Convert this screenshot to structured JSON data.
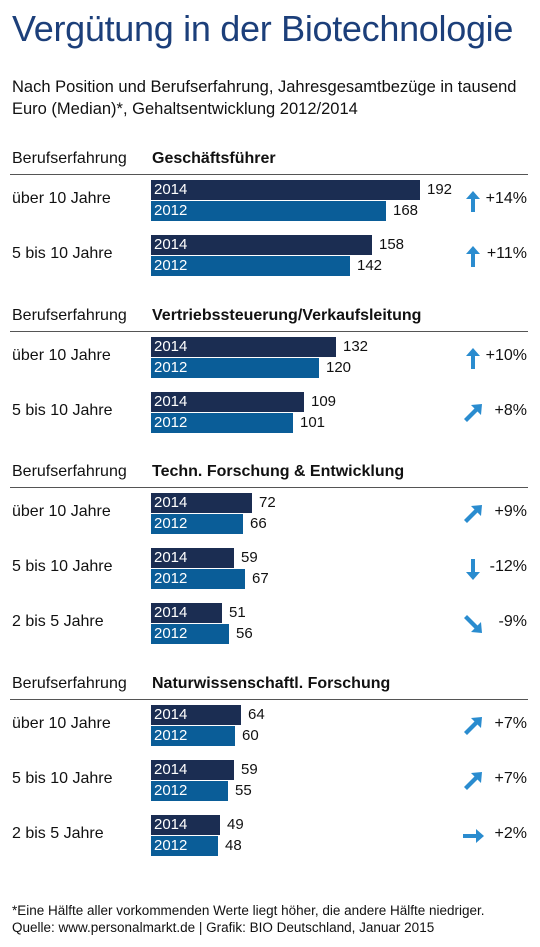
{
  "title": "Vergütung in der Biotechnologie",
  "subtitle": "Nach Position und Berufserfahrung, Jahresgesamtbezüge in tausend Euro (Median)*, Gehaltsentwicklung 2012/2014",
  "footnote": "*Eine Hälfte aller vorkommenden Werte liegt höher, die andere Hälfte niedriger.",
  "source": "Quelle: www.personalmarkt.de | Grafik: BIO Deutschland, Januar 2015",
  "colors": {
    "bar_2014": "#1b2d52",
    "bar_2012": "#0a5d98",
    "arrow": "#2a8ccf",
    "title": "#1c3f7a"
  },
  "chart_data": {
    "type": "bar",
    "orientation": "horizontal",
    "series_labels": [
      "2014",
      "2012"
    ],
    "xlim": [
      0,
      200
    ],
    "groups": [
      {
        "header_label": "Berufserfahrung",
        "name": "Geschäftsführer",
        "rows": [
          {
            "label": "über 10 Jahre",
            "v2014": 192,
            "v2012": 168,
            "change": "+14%",
            "trend": "up"
          },
          {
            "label": "5 bis 10 Jahre",
            "v2014": 158,
            "v2012": 142,
            "change": "+11%",
            "trend": "up"
          }
        ]
      },
      {
        "header_label": "Berufserfahrung",
        "name": "Vertriebssteuerung/Verkaufsleitung",
        "rows": [
          {
            "label": "über 10 Jahre",
            "v2014": 132,
            "v2012": 120,
            "change": "+10%",
            "trend": "up"
          },
          {
            "label": "5 bis 10 Jahre",
            "v2014": 109,
            "v2012": 101,
            "change": "+8%",
            "trend": "up-right"
          }
        ]
      },
      {
        "header_label": "Berufserfahrung",
        "name": "Techn. Forschung & Entwicklung",
        "rows": [
          {
            "label": "über 10 Jahre",
            "v2014": 72,
            "v2012": 66,
            "change": "+9%",
            "trend": "up-right"
          },
          {
            "label": "5 bis 10 Jahre",
            "v2014": 59,
            "v2012": 67,
            "change": "-12%",
            "trend": "down"
          },
          {
            "label": "2 bis 5 Jahre",
            "v2014": 51,
            "v2012": 56,
            "change": "-9%",
            "trend": "down-right"
          }
        ]
      },
      {
        "header_label": "Berufserfahrung",
        "name": "Naturwissenschaftl. Forschung",
        "rows": [
          {
            "label": "über 10 Jahre",
            "v2014": 64,
            "v2012": 60,
            "change": "+7%",
            "trend": "up-right"
          },
          {
            "label": "5 bis 10 Jahre",
            "v2014": 59,
            "v2012": 55,
            "change": "+7%",
            "trend": "up-right"
          },
          {
            "label": "2 bis 5 Jahre",
            "v2014": 49,
            "v2012": 48,
            "change": "+2%",
            "trend": "right"
          }
        ]
      }
    ]
  }
}
